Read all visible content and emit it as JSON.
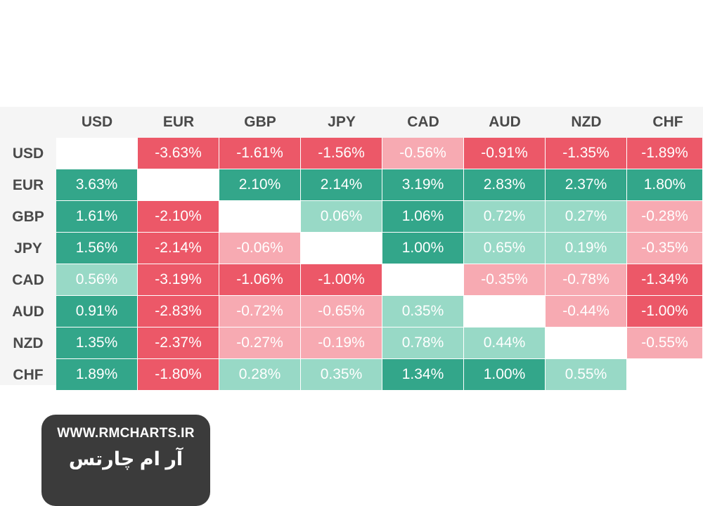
{
  "chart_data": {
    "type": "heatmap",
    "title": "",
    "columns": [
      "USD",
      "EUR",
      "GBP",
      "JPY",
      "CAD",
      "AUD",
      "NZD",
      "CHF"
    ],
    "rows": [
      "USD",
      "EUR",
      "GBP",
      "JPY",
      "CAD",
      "AUD",
      "NZD",
      "CHF"
    ],
    "cells": [
      [
        null,
        "-3.63%",
        "-1.61%",
        "-1.56%",
        "-0.56%",
        "-0.91%",
        "-1.35%",
        "-1.89%"
      ],
      [
        "3.63%",
        null,
        "2.10%",
        "2.14%",
        "3.19%",
        "2.83%",
        "2.37%",
        "1.80%"
      ],
      [
        "1.61%",
        "-2.10%",
        null,
        "0.06%",
        "1.06%",
        "0.72%",
        "0.27%",
        "-0.28%"
      ],
      [
        "1.56%",
        "-2.14%",
        "-0.06%",
        null,
        "1.00%",
        "0.65%",
        "0.19%",
        "-0.35%"
      ],
      [
        "0.56%",
        "-3.19%",
        "-1.06%",
        "-1.00%",
        null,
        "-0.35%",
        "-0.78%",
        "-1.34%"
      ],
      [
        "0.91%",
        "-2.83%",
        "-0.72%",
        "-0.65%",
        "0.35%",
        null,
        "-0.44%",
        "-1.00%"
      ],
      [
        "1.35%",
        "-2.37%",
        "-0.27%",
        "-0.19%",
        "0.78%",
        "0.44%",
        null,
        "-0.55%"
      ],
      [
        "1.89%",
        "-1.80%",
        "0.28%",
        "0.35%",
        "1.34%",
        "1.00%",
        "0.55%",
        null
      ]
    ],
    "intensity": [
      [
        0,
        -2,
        -2,
        -2,
        -1,
        -2,
        -2,
        -2
      ],
      [
        2,
        0,
        2,
        2,
        2,
        2,
        2,
        2
      ],
      [
        2,
        -2,
        0,
        1,
        2,
        1,
        1,
        -1
      ],
      [
        2,
        -2,
        -1,
        0,
        2,
        1,
        1,
        -1
      ],
      [
        1,
        -2,
        -2,
        -2,
        0,
        -1,
        -1,
        -2
      ],
      [
        2,
        -2,
        -1,
        -1,
        1,
        0,
        -1,
        -2
      ],
      [
        2,
        -2,
        -1,
        -1,
        1,
        1,
        0,
        -1
      ],
      [
        2,
        -2,
        1,
        1,
        2,
        2,
        1,
        0
      ]
    ],
    "colors": {
      "strong_positive": "#33a68a",
      "light_positive": "#98d9c6",
      "strong_negative": "#ec5868",
      "light_negative": "#f7aab2",
      "diagonal": "#ffffff"
    }
  },
  "brand": {
    "url": "WWW.RMCHARTS.IR",
    "persian_name": "آر ام چارتس"
  }
}
